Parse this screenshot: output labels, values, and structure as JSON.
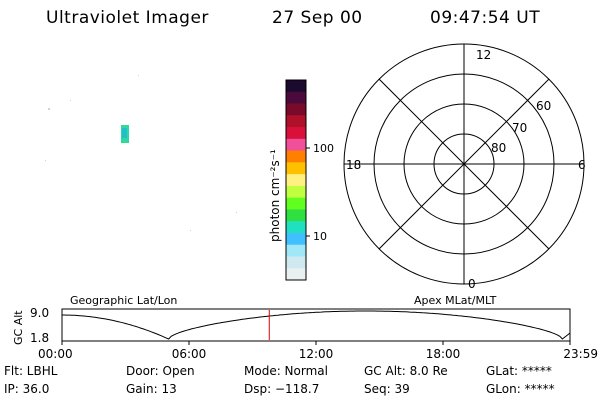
{
  "header": {
    "instrument": "Ultraviolet Imager",
    "date": "27 Sep 00",
    "time": "09:47:54 UT"
  },
  "colorbar": {
    "label": "photon cm⁻²s⁻¹",
    "tick_high": "100",
    "tick_low": "10",
    "colors": [
      "#1a0a2e",
      "#4b0a3c",
      "#7a0a2a",
      "#b0102a",
      "#d8103a",
      "#f0509a",
      "#ff8000",
      "#ffc000",
      "#fff080",
      "#c0ff40",
      "#60ff20",
      "#30e040",
      "#20e0c0",
      "#40c0ff",
      "#a0e8f8",
      "#d0e8f0",
      "#e8f0f0"
    ]
  },
  "polar": {
    "mlt_top": "12",
    "mlt_left": "18",
    "mlt_right": "6",
    "mlt_bottom": "0",
    "lat_60": "60",
    "lat_70": "70",
    "lat_80": "80"
  },
  "timeline": {
    "ylabel": "GC Alt",
    "y_high": "9.0",
    "y_low": "1.8",
    "left_label": "Geographic Lat/Lon",
    "right_label": "Apex MLat/MLT",
    "ticks": [
      "00:00",
      "06:00",
      "12:00",
      "18:00",
      "23:59"
    ],
    "current_time_fraction": 0.408
  },
  "info": {
    "flt": "Flt: LBHL",
    "ip": "IP: 36.0",
    "door": "Door: Open",
    "gain": "Gain: 13",
    "mode": "Mode: Normal",
    "dsp": "Dsp: −118.7",
    "gcalt": "GC Alt: 8.0 Re",
    "seq": "Seq: 39",
    "glat": "GLat: *****",
    "glon": "GLon: *****"
  }
}
